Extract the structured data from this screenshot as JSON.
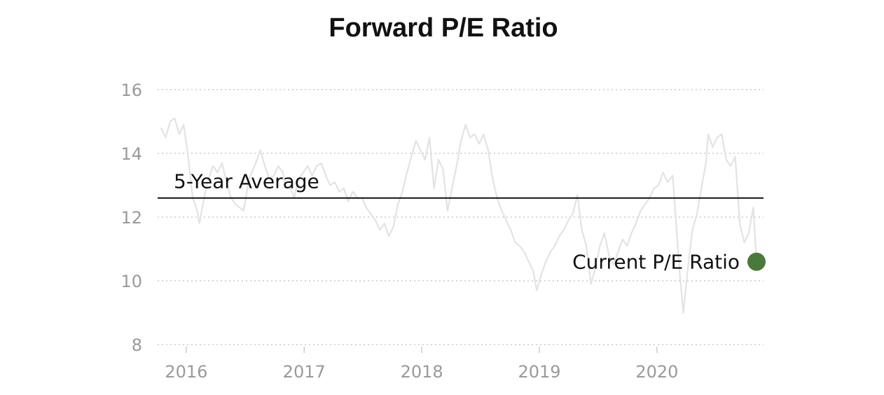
{
  "chart_data": {
    "type": "line",
    "title": "Forward P/E Ratio",
    "xlabel": "",
    "ylabel": "",
    "x_ticks": [
      "2016",
      "2017",
      "2018",
      "2019",
      "2020"
    ],
    "y_ticks": [
      16,
      14,
      12,
      10,
      8
    ],
    "xlim": [
      "2015-10-15",
      "2020-11-05"
    ],
    "ylim": [
      8,
      16.3
    ],
    "grid": "horizontal dotted",
    "series": [
      {
        "line_color": "#e3e3e3",
        "points": [
          [
            "2015-10-15",
            14.8
          ],
          [
            "2015-10-29",
            14.5
          ],
          [
            "2015-11-12",
            15.0
          ],
          [
            "2015-11-26",
            15.1
          ],
          [
            "2015-12-10",
            14.6
          ],
          [
            "2015-12-24",
            14.9
          ],
          [
            "2016-01-07",
            13.9
          ],
          [
            "2016-01-21",
            12.6
          ],
          [
            "2016-02-04",
            12.2
          ],
          [
            "2016-02-11",
            11.8
          ],
          [
            "2016-02-25",
            12.6
          ],
          [
            "2016-03-10",
            13.2
          ],
          [
            "2016-03-24",
            13.6
          ],
          [
            "2016-04-07",
            13.4
          ],
          [
            "2016-04-21",
            13.7
          ],
          [
            "2016-05-05",
            13.1
          ],
          [
            "2016-05-19",
            12.6
          ],
          [
            "2016-06-02",
            12.4
          ],
          [
            "2016-06-27",
            12.2
          ],
          [
            "2016-07-14",
            13.2
          ],
          [
            "2016-08-04",
            13.7
          ],
          [
            "2016-08-18",
            14.1
          ],
          [
            "2016-09-01",
            13.6
          ],
          [
            "2016-09-15",
            13.2
          ],
          [
            "2016-09-29",
            13.3
          ],
          [
            "2016-10-13",
            13.6
          ],
          [
            "2016-10-27",
            13.4
          ],
          [
            "2016-11-04",
            12.9
          ],
          [
            "2016-11-17",
            13.0
          ],
          [
            "2016-12-01",
            12.6
          ],
          [
            "2016-12-15",
            13.2
          ],
          [
            "2016-12-29",
            13.4
          ],
          [
            "2017-01-12",
            13.6
          ],
          [
            "2017-01-26",
            13.3
          ],
          [
            "2017-02-09",
            13.6
          ],
          [
            "2017-02-23",
            13.7
          ],
          [
            "2017-03-09",
            13.3
          ],
          [
            "2017-03-23",
            13.0
          ],
          [
            "2017-04-06",
            13.1
          ],
          [
            "2017-04-20",
            12.8
          ],
          [
            "2017-05-04",
            12.9
          ],
          [
            "2017-05-18",
            12.5
          ],
          [
            "2017-06-01",
            12.8
          ],
          [
            "2017-06-15",
            12.6
          ],
          [
            "2017-06-29",
            12.6
          ],
          [
            "2017-07-13",
            12.3
          ],
          [
            "2017-07-27",
            12.1
          ],
          [
            "2017-08-10",
            11.9
          ],
          [
            "2017-08-24",
            11.6
          ],
          [
            "2017-09-07",
            11.8
          ],
          [
            "2017-09-21",
            11.4
          ],
          [
            "2017-10-05",
            11.7
          ],
          [
            "2017-10-19",
            12.4
          ],
          [
            "2017-11-02",
            12.8
          ],
          [
            "2017-11-16",
            13.4
          ],
          [
            "2017-11-30",
            13.9
          ],
          [
            "2017-12-14",
            14.4
          ],
          [
            "2017-12-28",
            14.1
          ],
          [
            "2018-01-11",
            13.8
          ],
          [
            "2018-01-25",
            14.5
          ],
          [
            "2018-02-08",
            12.9
          ],
          [
            "2018-02-22",
            13.8
          ],
          [
            "2018-03-08",
            13.5
          ],
          [
            "2018-03-22",
            12.2
          ],
          [
            "2018-04-05",
            12.9
          ],
          [
            "2018-04-19",
            13.6
          ],
          [
            "2018-05-03",
            14.4
          ],
          [
            "2018-05-17",
            14.9
          ],
          [
            "2018-05-31",
            14.5
          ],
          [
            "2018-06-14",
            14.6
          ],
          [
            "2018-06-28",
            14.3
          ],
          [
            "2018-07-12",
            14.6
          ],
          [
            "2018-07-26",
            14.1
          ],
          [
            "2018-08-09",
            13.2
          ],
          [
            "2018-08-23",
            12.6
          ],
          [
            "2018-09-06",
            12.2
          ],
          [
            "2018-09-20",
            11.9
          ],
          [
            "2018-10-04",
            11.6
          ],
          [
            "2018-10-18",
            11.2
          ],
          [
            "2018-11-01",
            11.1
          ],
          [
            "2018-11-15",
            10.9
          ],
          [
            "2018-11-29",
            10.6
          ],
          [
            "2018-12-13",
            10.3
          ],
          [
            "2018-12-24",
            9.7
          ],
          [
            "2019-01-07",
            10.2
          ],
          [
            "2019-01-21",
            10.6
          ],
          [
            "2019-02-04",
            10.9
          ],
          [
            "2019-02-18",
            11.1
          ],
          [
            "2019-03-04",
            11.4
          ],
          [
            "2019-03-18",
            11.6
          ],
          [
            "2019-04-01",
            11.9
          ],
          [
            "2019-04-15",
            12.1
          ],
          [
            "2019-04-29",
            12.7
          ],
          [
            "2019-05-13",
            11.6
          ],
          [
            "2019-05-27",
            11.1
          ],
          [
            "2019-06-10",
            9.9
          ],
          [
            "2019-06-24",
            10.4
          ],
          [
            "2019-07-08",
            11.1
          ],
          [
            "2019-07-22",
            11.5
          ],
          [
            "2019-08-05",
            10.8
          ],
          [
            "2019-08-19",
            10.5
          ],
          [
            "2019-09-02",
            10.9
          ],
          [
            "2019-09-16",
            11.3
          ],
          [
            "2019-09-30",
            11.1
          ],
          [
            "2019-10-14",
            11.5
          ],
          [
            "2019-10-28",
            11.8
          ],
          [
            "2019-11-11",
            12.2
          ],
          [
            "2019-11-25",
            12.4
          ],
          [
            "2019-12-09",
            12.6
          ],
          [
            "2019-12-23",
            12.9
          ],
          [
            "2020-01-06",
            13.0
          ],
          [
            "2020-01-20",
            13.4
          ],
          [
            "2020-02-03",
            13.1
          ],
          [
            "2020-02-19",
            13.3
          ],
          [
            "2020-03-02",
            11.6
          ],
          [
            "2020-03-12",
            10.2
          ],
          [
            "2020-03-23",
            9.0
          ],
          [
            "2020-04-06",
            10.4
          ],
          [
            "2020-04-20",
            11.6
          ],
          [
            "2020-05-04",
            12.1
          ],
          [
            "2020-05-18",
            12.9
          ],
          [
            "2020-06-01",
            13.7
          ],
          [
            "2020-06-08",
            14.6
          ],
          [
            "2020-06-22",
            14.2
          ],
          [
            "2020-07-06",
            14.5
          ],
          [
            "2020-07-20",
            14.6
          ],
          [
            "2020-08-03",
            13.8
          ],
          [
            "2020-08-17",
            13.6
          ],
          [
            "2020-08-31",
            13.9
          ],
          [
            "2020-09-14",
            11.8
          ],
          [
            "2020-09-28",
            11.2
          ],
          [
            "2020-10-12",
            11.5
          ],
          [
            "2020-10-26",
            12.3
          ],
          [
            "2020-11-05",
            10.6
          ]
        ]
      }
    ],
    "reference_line": {
      "label": "5-Year Average",
      "value": 12.6,
      "color": "#111111"
    },
    "current_marker": {
      "label": "Current P/E Ratio",
      "date": "2020-11-05",
      "value": 10.6,
      "color": "#4a7a3a"
    }
  }
}
